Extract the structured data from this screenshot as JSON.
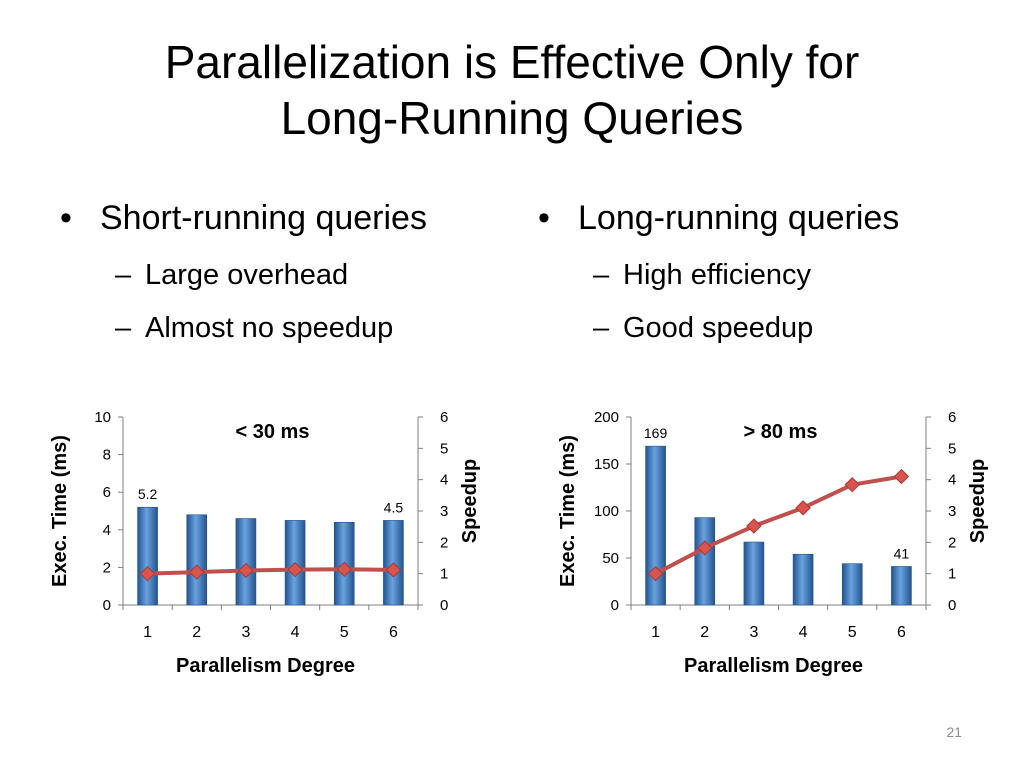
{
  "slide": {
    "title_line1": "Parallelization is Effective Only for",
    "title_line2": "Long-Running Queries",
    "left_bullet": "Short-running queries",
    "left_sub1": "Large overhead",
    "left_sub2": "Almost no speedup",
    "right_bullet": "Long-running queries",
    "right_sub1": "High efficiency",
    "right_sub2": "Good speedup",
    "bullet_symbol": "•",
    "dash_symbol": "–",
    "page_number": "21"
  },
  "colors": {
    "bar": "#3a78c4",
    "bar_light": "#6aa2e0",
    "bar_dark": "#22548f",
    "line": "#c0504d",
    "marker": "#d9534f",
    "axis": "#7f7f7f"
  },
  "chart_data": [
    {
      "type": "bar",
      "annotation": "< 30 ms",
      "xlabel": "Parallelism Degree",
      "ylabel": "Exec. Time (ms)",
      "y2label": "Speedup",
      "categories": [
        "1",
        "2",
        "3",
        "4",
        "5",
        "6"
      ],
      "ylim": [
        0,
        10
      ],
      "yticks": [
        0,
        2,
        4,
        6,
        8,
        10
      ],
      "y2lim": [
        0,
        6
      ],
      "y2ticks": [
        0,
        1,
        2,
        3,
        4,
        5,
        6
      ],
      "series": [
        {
          "name": "Exec. Time",
          "axis": "left",
          "kind": "bar",
          "values": [
            5.2,
            4.8,
            4.6,
            4.5,
            4.4,
            4.5
          ]
        },
        {
          "name": "Speedup",
          "axis": "right",
          "kind": "line",
          "values": [
            1.0,
            1.05,
            1.1,
            1.13,
            1.14,
            1.12
          ]
        }
      ],
      "data_labels": [
        {
          "index": 0,
          "text": "5.2"
        },
        {
          "index": 5,
          "text": "4.5"
        }
      ]
    },
    {
      "type": "bar",
      "annotation": "> 80 ms",
      "xlabel": "Parallelism Degree",
      "ylabel": "Exec. Time (ms)",
      "y2label": "Speedup",
      "categories": [
        "1",
        "2",
        "3",
        "4",
        "5",
        "6"
      ],
      "ylim": [
        0,
        200
      ],
      "yticks": [
        0,
        50,
        100,
        150,
        200
      ],
      "y2lim": [
        0,
        6
      ],
      "y2ticks": [
        0,
        1,
        2,
        3,
        4,
        5,
        6
      ],
      "series": [
        {
          "name": "Exec. Time",
          "axis": "left",
          "kind": "bar",
          "values": [
            169,
            93,
            67,
            54,
            44,
            41
          ]
        },
        {
          "name": "Speedup",
          "axis": "right",
          "kind": "line",
          "values": [
            1.0,
            1.82,
            2.52,
            3.1,
            3.84,
            4.1
          ]
        }
      ],
      "data_labels": [
        {
          "index": 0,
          "text": "169"
        },
        {
          "index": 5,
          "text": "41"
        }
      ]
    }
  ]
}
